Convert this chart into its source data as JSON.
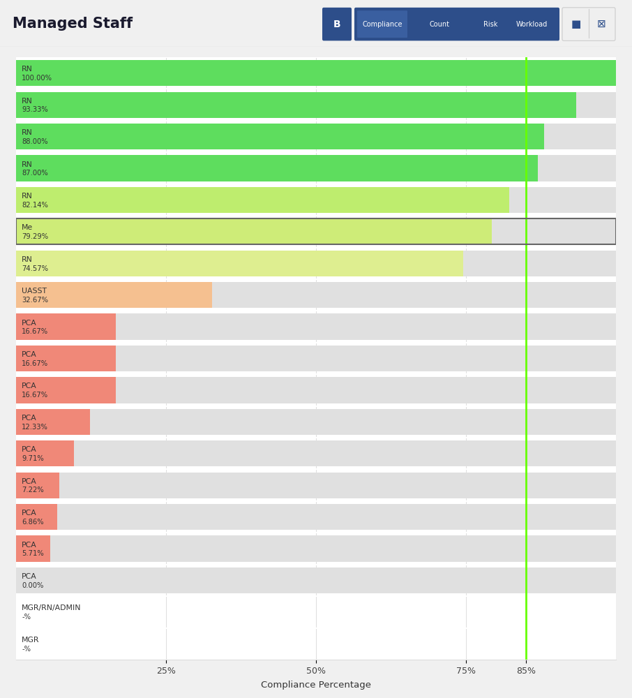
{
  "title": "Managed Staff",
  "xlabel": "Compliance Percentage",
  "staff": [
    {
      "label": "RN",
      "pct": 100.0,
      "display": "100.00%",
      "bar_color": "#5EDD5E",
      "bg_color": "#E0E0E0",
      "has_bg": true
    },
    {
      "label": "RN",
      "pct": 93.33,
      "display": "93.33%",
      "bar_color": "#5EDD5E",
      "bg_color": "#E0E0E0",
      "has_bg": true
    },
    {
      "label": "RN",
      "pct": 88.0,
      "display": "88.00%",
      "bar_color": "#5EDD5E",
      "bg_color": "#E0E0E0",
      "has_bg": true
    },
    {
      "label": "RN",
      "pct": 87.0,
      "display": "87.00%",
      "bar_color": "#5EDD5E",
      "bg_color": "#E0E0E0",
      "has_bg": true
    },
    {
      "label": "RN",
      "pct": 82.14,
      "display": "82.14%",
      "bar_color": "#BEED6E",
      "bg_color": "#E0E0E0",
      "has_bg": true
    },
    {
      "label": "Me",
      "pct": 79.29,
      "display": "79.29%",
      "bar_color": "#CEEC78",
      "bg_color": "#E0E0E0",
      "has_bg": true,
      "highlight": true
    },
    {
      "label": "RN",
      "pct": 74.57,
      "display": "74.57%",
      "bar_color": "#DEEE90",
      "bg_color": "#E0E0E0",
      "has_bg": true
    },
    {
      "label": "UASST",
      "pct": 32.67,
      "display": "32.67%",
      "bar_color": "#F5C090",
      "bg_color": "#E0E0E0",
      "has_bg": true
    },
    {
      "label": "PCA",
      "pct": 16.67,
      "display": "16.67%",
      "bar_color": "#F08878",
      "bg_color": "#E0E0E0",
      "has_bg": true
    },
    {
      "label": "PCA",
      "pct": 16.67,
      "display": "16.67%",
      "bar_color": "#F08878",
      "bg_color": "#E0E0E0",
      "has_bg": true
    },
    {
      "label": "PCA",
      "pct": 16.67,
      "display": "16.67%",
      "bar_color": "#F08878",
      "bg_color": "#E0E0E0",
      "has_bg": true
    },
    {
      "label": "PCA",
      "pct": 12.33,
      "display": "12.33%",
      "bar_color": "#F08878",
      "bg_color": "#E0E0E0",
      "has_bg": true
    },
    {
      "label": "PCA",
      "pct": 9.71,
      "display": "9.71%",
      "bar_color": "#F08878",
      "bg_color": "#E0E0E0",
      "has_bg": true
    },
    {
      "label": "PCA",
      "pct": 7.22,
      "display": "7.22%",
      "bar_color": "#F08878",
      "bg_color": "#E0E0E0",
      "has_bg": true
    },
    {
      "label": "PCA",
      "pct": 6.86,
      "display": "6.86%",
      "bar_color": "#F08878",
      "bg_color": "#E0E0E0",
      "has_bg": true
    },
    {
      "label": "PCA",
      "pct": 5.71,
      "display": "5.71%",
      "bar_color": "#F08878",
      "bg_color": "#E0E0E0",
      "has_bg": true
    },
    {
      "label": "PCA",
      "pct": 0.0,
      "display": "0.00%",
      "bar_color": null,
      "bg_color": "#E0E0E0",
      "has_bg": true
    },
    {
      "label": "MGR/RN/ADMIN",
      "pct": null,
      "display": "-%",
      "bar_color": null,
      "bg_color": null,
      "has_bg": false
    },
    {
      "label": "MGR",
      "pct": null,
      "display": "-%",
      "bar_color": null,
      "bg_color": null,
      "has_bg": false
    }
  ],
  "target_line": 85,
  "xlim": [
    0,
    100
  ],
  "xtick_positions": [
    25,
    50,
    75,
    85
  ],
  "xtick_labels": [
    "25%",
    "50%",
    "75%",
    "85%"
  ],
  "figure_bg": "#F0F0F0",
  "plot_bg": "#FFFFFF",
  "chart_border": "#DDDDDD",
  "target_line_color": "#66FF00",
  "row_sep_color": "#FFFFFF",
  "grid_color": "#DDDDDD",
  "label_color": "#333333",
  "highlight_border_color": "#666666",
  "nav_bg": "#2D4E8A",
  "nav_active_bg": "#3A5FA0",
  "nav_icon_bg": "#2D4E8A",
  "nav_text": "#FFFFFF",
  "icon_btn_bg": "#EFEFEF",
  "icon_btn_border": "#CCCCCC"
}
